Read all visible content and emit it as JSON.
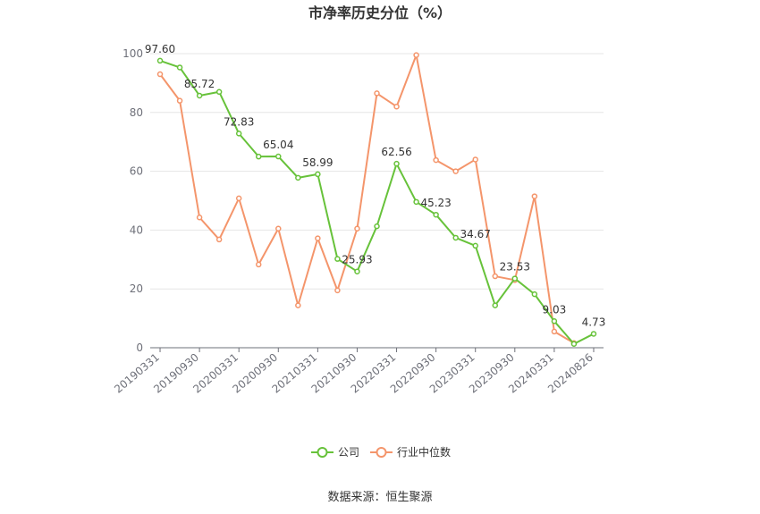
{
  "chart_data": {
    "type": "line",
    "title": "市净率历史分位（%）",
    "xlabel": "",
    "ylabel": "",
    "ylim": [
      0,
      100
    ],
    "yticks": [
      0,
      20,
      40,
      60,
      80,
      100
    ],
    "x_tick_labels": [
      "20190331",
      "20190930",
      "20200331",
      "20200930",
      "20210331",
      "20210930",
      "20220331",
      "20220930",
      "20230331",
      "20230930",
      "20240331",
      "20240826"
    ],
    "grid": true,
    "legend_position": "bottom-center",
    "x": [
      "20190331",
      "20190630",
      "20190930",
      "20191231",
      "20200331",
      "20200630",
      "20200930",
      "20201231",
      "20210331",
      "20210630",
      "20210930",
      "20211231",
      "20220331",
      "20220630",
      "20220930",
      "20221231",
      "20230331",
      "20230630",
      "20230930",
      "20231231",
      "20240331",
      "20240630",
      "20240826"
    ],
    "series": [
      {
        "name": "公司",
        "color": "#67c23a",
        "values": [
          97.6,
          95.3,
          85.72,
          87.0,
          72.83,
          65.0,
          65.04,
          57.8,
          58.99,
          30.2,
          25.93,
          41.3,
          62.56,
          49.6,
          45.23,
          37.4,
          34.67,
          14.4,
          23.53,
          18.2,
          9.03,
          1.3,
          4.73
        ],
        "labels": {
          "0": "97.60",
          "2": "85.72",
          "4": "72.83",
          "6": "65.04",
          "8": "58.99",
          "10": "25.93",
          "12": "62.56",
          "14": "45.23",
          "16": "34.67",
          "18": "23.53",
          "20": "9.03",
          "22": "4.73"
        }
      },
      {
        "name": "行业中位数",
        "color": "#f4956b",
        "values": [
          93.0,
          84.0,
          44.3,
          36.8,
          50.8,
          28.3,
          40.5,
          14.4,
          37.2,
          19.5,
          40.5,
          86.5,
          82.0,
          99.5,
          63.8,
          60.0,
          64.0,
          24.3,
          23.0,
          51.5,
          5.5,
          1.6,
          null
        ]
      }
    ]
  },
  "source_text": "数据来源：恒生聚源"
}
